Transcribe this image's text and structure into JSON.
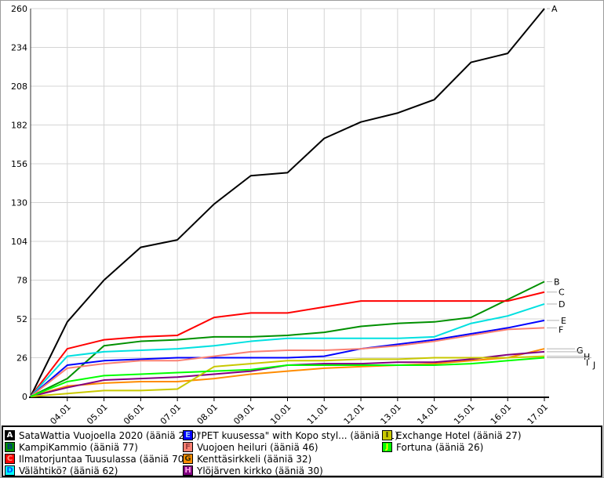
{
  "chart_data": {
    "type": "line",
    "title": "",
    "xlabel": "",
    "ylabel": "",
    "ylim": [
      0,
      260
    ],
    "grid": true,
    "legend_position": "bottom",
    "y_ticks": [
      0,
      26,
      52,
      78,
      104,
      130,
      156,
      182,
      208,
      234,
      260
    ],
    "x_tick_labels": [
      "04.01",
      "05.01",
      "06.01",
      "07.01",
      "08.01",
      "09.01",
      "10.01",
      "11.01",
      "12.01",
      "13.01",
      "14.01",
      "15.01",
      "16.01",
      "17.01"
    ],
    "series": [
      {
        "letter": "A",
        "name": "SataWattia Vuojoella 2020",
        "votes": 260,
        "color": "#000000",
        "values": [
          0,
          50,
          78,
          100,
          105,
          129,
          148,
          150,
          173,
          184,
          190,
          199,
          224,
          230,
          260
        ]
      },
      {
        "letter": "B",
        "name": "KampiKammio",
        "votes": 77,
        "color": "#009000",
        "values": [
          0,
          12,
          34,
          37,
          38,
          40,
          40,
          41,
          43,
          47,
          49,
          50,
          53,
          65,
          77
        ]
      },
      {
        "letter": "C",
        "name": "Ilmatorjuntaa Tuusulassa",
        "votes": 70,
        "color": "#FF0000",
        "values": [
          0,
          32,
          38,
          40,
          41,
          53,
          56,
          56,
          60,
          64,
          64,
          64,
          64,
          64,
          70
        ]
      },
      {
        "letter": "D",
        "name": "Välähtikö?",
        "votes": 62,
        "color": "#00E0E0",
        "values": [
          0,
          27,
          30,
          31,
          32,
          34,
          37,
          39,
          39,
          39,
          39,
          40,
          49,
          54,
          62
        ]
      },
      {
        "letter": "E",
        "name": "\"PET kuusessa\" with Kopo styl...",
        "votes": 51,
        "color": "#0000FF",
        "values": [
          0,
          21,
          24,
          25,
          26,
          26,
          26,
          26,
          27,
          32,
          35,
          38,
          42,
          46,
          51
        ]
      },
      {
        "letter": "F",
        "name": "Vuojoen heiluri",
        "votes": 46,
        "color": "#FA8072",
        "values": [
          0,
          19,
          22,
          24,
          24,
          27,
          30,
          31,
          31,
          32,
          34,
          37,
          41,
          45,
          46
        ]
      },
      {
        "letter": "G",
        "name": "Kenttäsirkkeli",
        "votes": 32,
        "color": "#FF8C00",
        "values": [
          0,
          7,
          9,
          10,
          10,
          12,
          15,
          17,
          19,
          20,
          21,
          22,
          24,
          26,
          32
        ]
      },
      {
        "letter": "H",
        "name": "Ylöjärven kirkko",
        "votes": 30,
        "color": "#800080",
        "values": [
          0,
          6,
          11,
          12,
          13,
          15,
          17,
          21,
          22,
          22,
          23,
          23,
          25,
          28,
          30
        ]
      },
      {
        "letter": "I",
        "name": "Exchange Hotel",
        "votes": 27,
        "color": "#C8C800",
        "values": [
          0,
          2,
          4,
          4,
          5,
          20,
          22,
          24,
          24,
          25,
          25,
          26,
          26,
          26,
          27
        ]
      },
      {
        "letter": "J",
        "name": "Fortuna",
        "votes": 26,
        "color": "#00FF00",
        "values": [
          0,
          10,
          14,
          15,
          16,
          17,
          18,
          21,
          21,
          21,
          21,
          21,
          22,
          24,
          26
        ]
      }
    ]
  },
  "legend": {
    "items": [
      {
        "letter": "A",
        "label": "SataWattia Vuojoella 2020 (ääniä 260)",
        "box_color": "#000000",
        "letter_color": "#FFFFFF"
      },
      {
        "letter": "B",
        "label": "KampiKammio (ääniä 77)",
        "box_color": "#009000",
        "letter_color": "#003C78"
      },
      {
        "letter": "C",
        "label": "Ilmatorjuntaa Tuusulassa (ääniä 70)",
        "box_color": "#FF0000",
        "letter_color": "#FF9680"
      },
      {
        "letter": "D",
        "label": "Välähtikö? (ääniä 62)",
        "box_color": "#00FFFF",
        "letter_color": "#0050FF"
      },
      {
        "letter": "E",
        "label": "\"PET kuusessa\" with Kopo styl... (ääniä 51)",
        "box_color": "#0000FF",
        "letter_color": "#96BEFF"
      },
      {
        "letter": "F",
        "label": "Vuojoen heiluri (ääniä 46)",
        "box_color": "#FA8072",
        "letter_color": "#A04040"
      },
      {
        "letter": "G",
        "label": "Kenttäsirkkeli (ääniä 32)",
        "box_color": "#FF8C00",
        "letter_color": "#3C3200"
      },
      {
        "letter": "H",
        "label": "Ylöjärven kirkko (ääniä 30)",
        "box_color": "#800080",
        "letter_color": "#FFA0E6"
      },
      {
        "letter": "I",
        "label": "Exchange Hotel (ääniä 27)",
        "box_color": "#C8C800",
        "letter_color": "#3C3C00"
      },
      {
        "letter": "J",
        "label": "Fortuna (ääniä 26)",
        "box_color": "#00FF00",
        "letter_color": "#FFFF00"
      }
    ]
  }
}
